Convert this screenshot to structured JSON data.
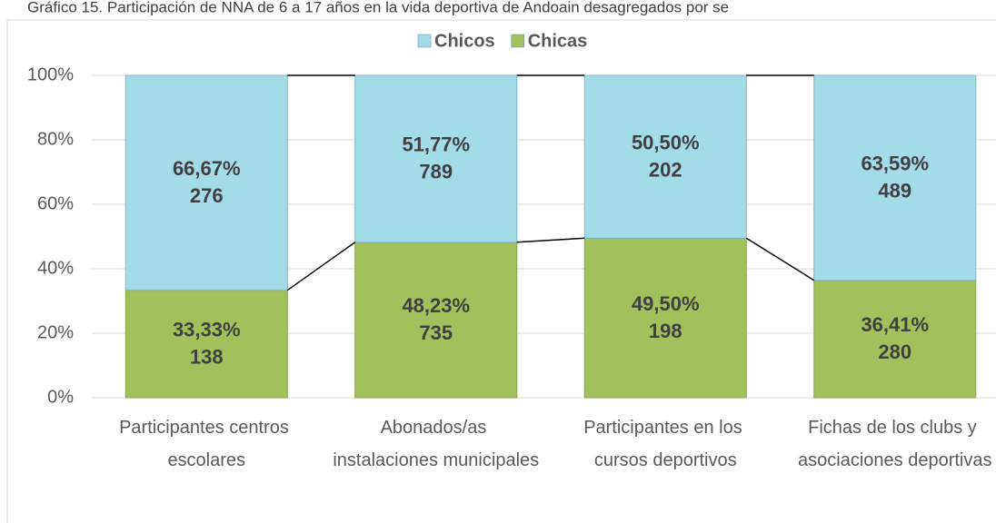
{
  "chart_data": {
    "type": "stacked_bar_100",
    "title": "Gráfico 15. Participación de NNA de 6 a 17 años en la vida deportiva de Andoain desagregados por se",
    "categories": [
      "Participantes centros escolares",
      "Abonados/as instalaciones municipales",
      "Participantes en los cursos deportivos",
      "Fichas de los clubs y asociaciones deportivas"
    ],
    "series": [
      {
        "name": "Chicos",
        "color": "#a3dbe9",
        "values": [
          66.67,
          51.77,
          50.5,
          63.59
        ],
        "value_labels": [
          "66,67%",
          "51,77%",
          "50,50%",
          "63,59%"
        ],
        "counts": [
          276,
          789,
          202,
          489
        ]
      },
      {
        "name": "Chicas",
        "color": "#a2c15c",
        "values": [
          33.33,
          48.23,
          49.5,
          36.41
        ],
        "value_labels": [
          "33,33%",
          "48,23%",
          "49,50%",
          "36,41%"
        ],
        "counts": [
          138,
          735,
          198,
          280
        ]
      }
    ],
    "ylim": [
      0,
      100
    ],
    "yticks": [
      {
        "value": 0,
        "label": "0%"
      },
      {
        "value": 20,
        "label": "20%"
      },
      {
        "value": 40,
        "label": "40%"
      },
      {
        "value": 60,
        "label": "60%"
      },
      {
        "value": 80,
        "label": "80%"
      },
      {
        "value": 100,
        "label": "100%"
      }
    ],
    "grid": true,
    "legend": "top"
  }
}
